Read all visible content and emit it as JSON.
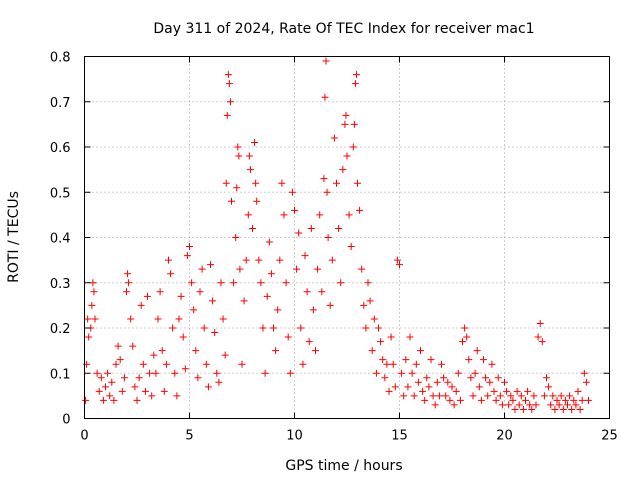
{
  "chart_data": {
    "type": "scatter",
    "title": "Day 311 of 2024, Rate Of TEC Index for receiver mac1",
    "xlabel": "GPS time / hours",
    "ylabel": "ROTI / TECUs",
    "xlim": [
      0,
      25
    ],
    "ylim": [
      0,
      0.8
    ],
    "xticks": [
      "0",
      "5",
      "10",
      "15",
      "20",
      "25"
    ],
    "yticks": [
      "0",
      "0.1",
      "0.2",
      "0.3",
      "0.4",
      "0.5",
      "0.6",
      "0.7",
      "0.8"
    ],
    "grid": true,
    "marker": "+",
    "color": "#ff0000",
    "series": [
      {
        "name": "ROTI",
        "points": [
          [
            0.05,
            0.04
          ],
          [
            0.1,
            0.12
          ],
          [
            0.15,
            0.22
          ],
          [
            0.2,
            0.18
          ],
          [
            0.3,
            0.2
          ],
          [
            0.35,
            0.25
          ],
          [
            0.4,
            0.3
          ],
          [
            0.45,
            0.28
          ],
          [
            0.5,
            0.22
          ],
          [
            0.6,
            0.1
          ],
          [
            0.7,
            0.06
          ],
          [
            0.8,
            0.09
          ],
          [
            0.9,
            0.04
          ],
          [
            1.0,
            0.07
          ],
          [
            1.1,
            0.1
          ],
          [
            1.2,
            0.05
          ],
          [
            1.3,
            0.08
          ],
          [
            1.4,
            0.04
          ],
          [
            1.5,
            0.12
          ],
          [
            1.6,
            0.16
          ],
          [
            1.7,
            0.13
          ],
          [
            1.8,
            0.06
          ],
          [
            1.9,
            0.09
          ],
          [
            2.0,
            0.28
          ],
          [
            2.05,
            0.32
          ],
          [
            2.1,
            0.3
          ],
          [
            2.2,
            0.22
          ],
          [
            2.3,
            0.16
          ],
          [
            2.4,
            0.07
          ],
          [
            2.5,
            0.04
          ],
          [
            2.6,
            0.09
          ],
          [
            2.7,
            0.25
          ],
          [
            2.8,
            0.12
          ],
          [
            2.9,
            0.06
          ],
          [
            3.0,
            0.27
          ],
          [
            3.1,
            0.1
          ],
          [
            3.2,
            0.05
          ],
          [
            3.3,
            0.14
          ],
          [
            3.4,
            0.1
          ],
          [
            3.5,
            0.22
          ],
          [
            3.6,
            0.28
          ],
          [
            3.7,
            0.15
          ],
          [
            3.8,
            0.06
          ],
          [
            3.9,
            0.12
          ],
          [
            4.0,
            0.35
          ],
          [
            4.1,
            0.32
          ],
          [
            4.2,
            0.2
          ],
          [
            4.3,
            0.1
          ],
          [
            4.4,
            0.05
          ],
          [
            4.5,
            0.22
          ],
          [
            4.6,
            0.27
          ],
          [
            4.7,
            0.18
          ],
          [
            4.8,
            0.11
          ],
          [
            4.9,
            0.36
          ],
          [
            5.0,
            0.38
          ],
          [
            5.1,
            0.3
          ],
          [
            5.2,
            0.24
          ],
          [
            5.3,
            0.15
          ],
          [
            5.4,
            0.09
          ],
          [
            5.5,
            0.28
          ],
          [
            5.6,
            0.33
          ],
          [
            5.7,
            0.2
          ],
          [
            5.8,
            0.12
          ],
          [
            5.9,
            0.07
          ],
          [
            6.0,
            0.34
          ],
          [
            6.1,
            0.26
          ],
          [
            6.2,
            0.19
          ],
          [
            6.3,
            0.1
          ],
          [
            6.4,
            0.08
          ],
          [
            6.5,
            0.3
          ],
          [
            6.6,
            0.22
          ],
          [
            6.7,
            0.14
          ],
          [
            6.75,
            0.52
          ],
          [
            6.8,
            0.67
          ],
          [
            6.85,
            0.76
          ],
          [
            6.9,
            0.74
          ],
          [
            6.95,
            0.7
          ],
          [
            7.0,
            0.48
          ],
          [
            7.1,
            0.3
          ],
          [
            7.2,
            0.4
          ],
          [
            7.25,
            0.51
          ],
          [
            7.3,
            0.6
          ],
          [
            7.35,
            0.58
          ],
          [
            7.4,
            0.33
          ],
          [
            7.5,
            0.12
          ],
          [
            7.6,
            0.26
          ],
          [
            7.7,
            0.35
          ],
          [
            7.8,
            0.45
          ],
          [
            7.85,
            0.58
          ],
          [
            7.9,
            0.55
          ],
          [
            8.0,
            0.42
          ],
          [
            8.1,
            0.61
          ],
          [
            8.15,
            0.52
          ],
          [
            8.2,
            0.48
          ],
          [
            8.3,
            0.35
          ],
          [
            8.4,
            0.3
          ],
          [
            8.5,
            0.2
          ],
          [
            8.6,
            0.1
          ],
          [
            8.7,
            0.27
          ],
          [
            8.8,
            0.39
          ],
          [
            8.9,
            0.32
          ],
          [
            9.0,
            0.2
          ],
          [
            9.1,
            0.15
          ],
          [
            9.2,
            0.24
          ],
          [
            9.3,
            0.35
          ],
          [
            9.4,
            0.52
          ],
          [
            9.5,
            0.45
          ],
          [
            9.6,
            0.3
          ],
          [
            9.7,
            0.18
          ],
          [
            9.8,
            0.1
          ],
          [
            9.9,
            0.5
          ],
          [
            10.0,
            0.46
          ],
          [
            10.1,
            0.33
          ],
          [
            10.2,
            0.41
          ],
          [
            10.3,
            0.2
          ],
          [
            10.4,
            0.12
          ],
          [
            10.5,
            0.36
          ],
          [
            10.6,
            0.28
          ],
          [
            10.7,
            0.17
          ],
          [
            10.8,
            0.42
          ],
          [
            10.9,
            0.24
          ],
          [
            11.0,
            0.15
          ],
          [
            11.1,
            0.33
          ],
          [
            11.2,
            0.45
          ],
          [
            11.3,
            0.28
          ],
          [
            11.4,
            0.53
          ],
          [
            11.45,
            0.71
          ],
          [
            11.5,
            0.79
          ],
          [
            11.55,
            0.5
          ],
          [
            11.6,
            0.4
          ],
          [
            11.7,
            0.25
          ],
          [
            11.8,
            0.35
          ],
          [
            11.9,
            0.62
          ],
          [
            12.0,
            0.52
          ],
          [
            12.1,
            0.42
          ],
          [
            12.2,
            0.3
          ],
          [
            12.3,
            0.55
          ],
          [
            12.4,
            0.65
          ],
          [
            12.45,
            0.67
          ],
          [
            12.5,
            0.58
          ],
          [
            12.6,
            0.45
          ],
          [
            12.7,
            0.38
          ],
          [
            12.8,
            0.6
          ],
          [
            12.85,
            0.65
          ],
          [
            12.9,
            0.74
          ],
          [
            12.95,
            0.76
          ],
          [
            13.0,
            0.52
          ],
          [
            13.1,
            0.46
          ],
          [
            13.2,
            0.33
          ],
          [
            13.3,
            0.25
          ],
          [
            13.4,
            0.2
          ],
          [
            13.5,
            0.3
          ],
          [
            13.6,
            0.26
          ],
          [
            13.7,
            0.15
          ],
          [
            13.8,
            0.22
          ],
          [
            13.9,
            0.1
          ],
          [
            14.0,
            0.2
          ],
          [
            14.1,
            0.17
          ],
          [
            14.2,
            0.13
          ],
          [
            14.3,
            0.09
          ],
          [
            14.4,
            0.12
          ],
          [
            14.5,
            0.06
          ],
          [
            14.6,
            0.18
          ],
          [
            14.7,
            0.12
          ],
          [
            14.8,
            0.07
          ],
          [
            14.9,
            0.35
          ],
          [
            15.0,
            0.34
          ],
          [
            15.1,
            0.1
          ],
          [
            15.2,
            0.05
          ],
          [
            15.3,
            0.13
          ],
          [
            15.4,
            0.07
          ],
          [
            15.5,
            0.18
          ],
          [
            15.6,
            0.1
          ],
          [
            15.7,
            0.05
          ],
          [
            15.8,
            0.12
          ],
          [
            15.9,
            0.08
          ],
          [
            16.0,
            0.15
          ],
          [
            16.1,
            0.06
          ],
          [
            16.2,
            0.04
          ],
          [
            16.3,
            0.09
          ],
          [
            16.4,
            0.07
          ],
          [
            16.5,
            0.13
          ],
          [
            16.6,
            0.05
          ],
          [
            16.7,
            0.03
          ],
          [
            16.8,
            0.08
          ],
          [
            16.9,
            0.05
          ],
          [
            17.0,
            0.12
          ],
          [
            17.1,
            0.09
          ],
          [
            17.2,
            0.05
          ],
          [
            17.3,
            0.08
          ],
          [
            17.4,
            0.04
          ],
          [
            17.5,
            0.07
          ],
          [
            17.6,
            0.03
          ],
          [
            17.7,
            0.06
          ],
          [
            17.8,
            0.1
          ],
          [
            17.9,
            0.04
          ],
          [
            18.0,
            0.17
          ],
          [
            18.1,
            0.2
          ],
          [
            18.2,
            0.18
          ],
          [
            18.3,
            0.13
          ],
          [
            18.4,
            0.09
          ],
          [
            18.5,
            0.05
          ],
          [
            18.6,
            0.1
          ],
          [
            18.7,
            0.15
          ],
          [
            18.8,
            0.07
          ],
          [
            18.9,
            0.04
          ],
          [
            19.0,
            0.13
          ],
          [
            19.1,
            0.09
          ],
          [
            19.2,
            0.05
          ],
          [
            19.3,
            0.08
          ],
          [
            19.4,
            0.12
          ],
          [
            19.5,
            0.06
          ],
          [
            19.6,
            0.04
          ],
          [
            19.7,
            0.09
          ],
          [
            19.8,
            0.05
          ],
          [
            19.9,
            0.03
          ],
          [
            20.0,
            0.08
          ],
          [
            20.1,
            0.06
          ],
          [
            20.2,
            0.03
          ],
          [
            20.3,
            0.05
          ],
          [
            20.4,
            0.04
          ],
          [
            20.5,
            0.02
          ],
          [
            20.6,
            0.06
          ],
          [
            20.7,
            0.03
          ],
          [
            20.8,
            0.05
          ],
          [
            20.9,
            0.02
          ],
          [
            21.0,
            0.04
          ],
          [
            21.1,
            0.06
          ],
          [
            21.2,
            0.03
          ],
          [
            21.3,
            0.02
          ],
          [
            21.4,
            0.05
          ],
          [
            21.5,
            0.03
          ],
          [
            21.6,
            0.18
          ],
          [
            21.7,
            0.21
          ],
          [
            21.8,
            0.17
          ],
          [
            21.9,
            0.05
          ],
          [
            22.0,
            0.09
          ],
          [
            22.1,
            0.07
          ],
          [
            22.2,
            0.03
          ],
          [
            22.3,
            0.05
          ],
          [
            22.4,
            0.02
          ],
          [
            22.5,
            0.04
          ],
          [
            22.6,
            0.03
          ],
          [
            22.7,
            0.05
          ],
          [
            22.8,
            0.02
          ],
          [
            22.9,
            0.04
          ],
          [
            23.0,
            0.03
          ],
          [
            23.1,
            0.05
          ],
          [
            23.2,
            0.02
          ],
          [
            23.3,
            0.04
          ],
          [
            23.4,
            0.03
          ],
          [
            23.5,
            0.06
          ],
          [
            23.6,
            0.02
          ],
          [
            23.7,
            0.04
          ],
          [
            23.8,
            0.1
          ],
          [
            23.9,
            0.08
          ],
          [
            24.0,
            0.04
          ]
        ]
      }
    ]
  }
}
